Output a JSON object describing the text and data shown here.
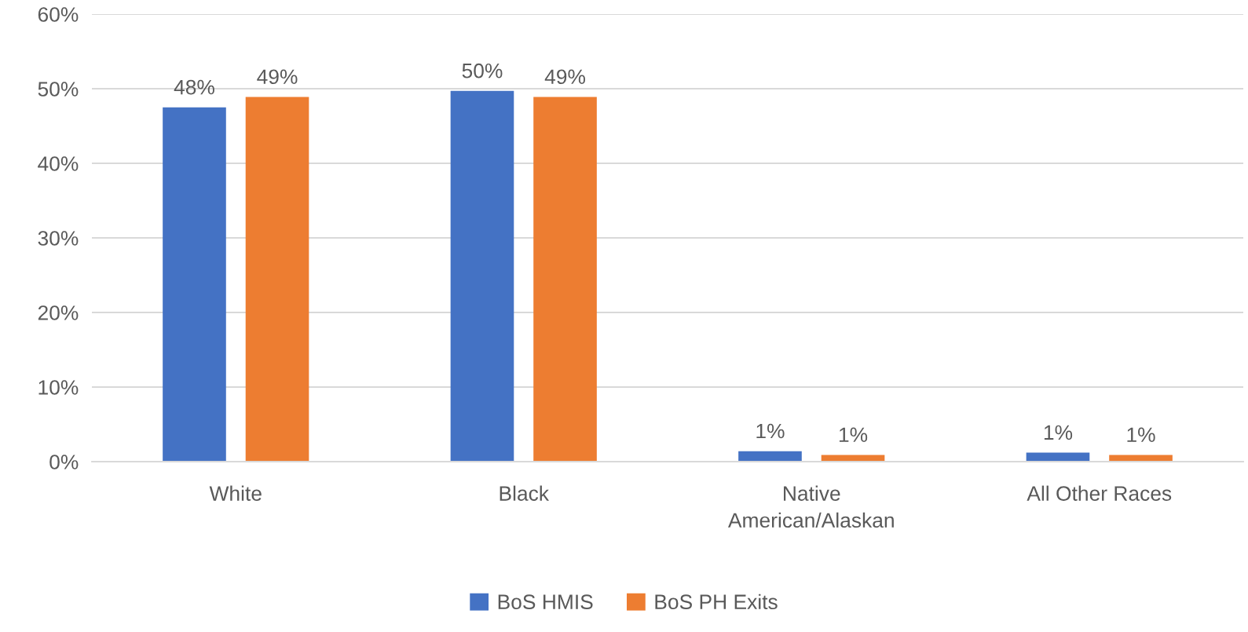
{
  "chart_data": {
    "type": "bar",
    "categories": [
      "White",
      "Black",
      "Native\nAmerican/Alaskan",
      "All Other Races"
    ],
    "series": [
      {
        "name": "BoS HMIS",
        "color": "#4472c4",
        "values": [
          47.5,
          49.7,
          1.4,
          1.2
        ],
        "value_labels": [
          "48%",
          "50%",
          "1%",
          "1%"
        ]
      },
      {
        "name": "BoS PH Exits",
        "color": "#ed7d31",
        "values": [
          48.9,
          48.9,
          0.9,
          0.9
        ],
        "value_labels": [
          "49%",
          "49%",
          "1%",
          "1%"
        ]
      }
    ],
    "ylim": [
      0,
      60
    ],
    "yticks": [
      {
        "value": 0,
        "label": "0%"
      },
      {
        "value": 10,
        "label": "10%"
      },
      {
        "value": 20,
        "label": "20%"
      },
      {
        "value": 30,
        "label": "30%"
      },
      {
        "value": 40,
        "label": "40%"
      },
      {
        "value": 50,
        "label": "50%"
      },
      {
        "value": 60,
        "label": "60%"
      }
    ],
    "grid": "y",
    "legend": "bottom"
  }
}
